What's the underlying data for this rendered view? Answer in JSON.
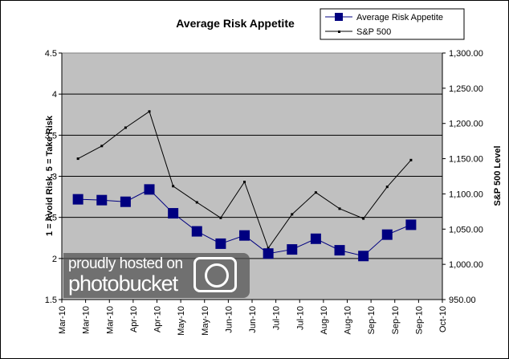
{
  "chart_data": {
    "type": "line",
    "title": "Average Risk Appetite",
    "ylabel": "1 = Avoid Risk, 5 = Take Risk",
    "y2label": "S&P 500 Level",
    "ylim": [
      1.5,
      4.5
    ],
    "y2lim": [
      950,
      1300
    ],
    "y_ticks": [
      "1.5",
      "2",
      "2.5",
      "3",
      "3.5",
      "4",
      "4.5"
    ],
    "y2_ticks": [
      "950.00",
      "1,000.00",
      "1,050.00",
      "1,100.00",
      "1,150.00",
      "1,200.00",
      "1,250.00",
      "1,300.00"
    ],
    "x_tick_labels": [
      "Mar-10",
      "Mar-10",
      "Mar-10",
      "Apr-10",
      "Apr-10",
      "May-10",
      "May-10",
      "Jun-10",
      "Jun-10",
      "Jul-10",
      "Jul-10",
      "Aug-10",
      "Aug-10",
      "Sep-10",
      "Sep-10",
      "Sep-10",
      "Oct-10"
    ],
    "grid": true,
    "plot_background": "#c0c0c0",
    "legend": "top-right",
    "series": [
      {
        "name": "Average Risk Appetite",
        "axis": "left",
        "color": "#000080",
        "marker": "square",
        "values": [
          2.72,
          2.71,
          2.69,
          2.84,
          2.55,
          2.33,
          2.18,
          2.28,
          2.06,
          2.11,
          2.24,
          2.1,
          2.03,
          2.29,
          2.41
        ]
      },
      {
        "name": "S&P 500",
        "axis": "right",
        "color": "#000000",
        "marker": "dot",
        "values": [
          1150,
          1168,
          1194,
          1217,
          1111,
          1088,
          1066,
          1117,
          1023,
          1071,
          1102,
          1079,
          1065,
          1110,
          1148
        ]
      }
    ]
  },
  "watermark": {
    "line1": "proudly hosted on",
    "line2": "photobucket"
  }
}
